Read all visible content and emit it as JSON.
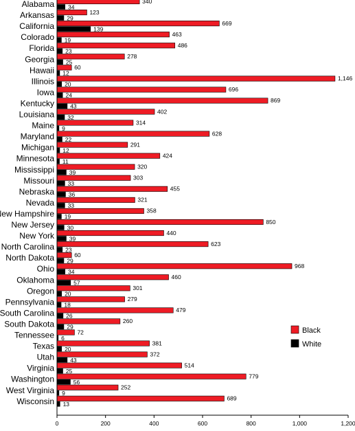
{
  "chart_data": {
    "type": "bar",
    "orientation": "horizontal",
    "categories": [
      "Alabama",
      "Arkansas",
      "California",
      "Colorado",
      "Florida",
      "Georgia",
      "Hawaii",
      "Illinois",
      "Iowa",
      "Kentucky",
      "Louisiana",
      "Maine",
      "Maryland",
      "Michigan",
      "Minnesota",
      "Mississippi",
      "Missouri",
      "Nebraska",
      "Nevada",
      "New Hampshire",
      "New Jersey",
      "New York",
      "North Carolina",
      "North Dakota",
      "Ohio",
      "Oklahoma",
      "Oregon",
      "Pennsylvania",
      "South Carolina",
      "South Dakota",
      "Tennessee",
      "Texas",
      "Utah",
      "Virginia",
      "Washington",
      "West Virginia",
      "Wisconsin"
    ],
    "series": [
      {
        "name": "Black",
        "color": "#ee1c25",
        "values": [
          340,
          123,
          669,
          463,
          486,
          278,
          60,
          1146,
          696,
          869,
          402,
          314,
          628,
          291,
          424,
          320,
          303,
          455,
          321,
          358,
          850,
          440,
          623,
          60,
          968,
          460,
          301,
          279,
          479,
          260,
          72,
          381,
          372,
          514,
          779,
          252,
          689
        ],
        "labels": [
          "340",
          "123",
          "669",
          "463",
          "486",
          "278",
          "60",
          "1,146",
          "696",
          "869",
          "402",
          "314",
          "628",
          "291",
          "424",
          "320",
          "303",
          "455",
          "321",
          "358",
          "850",
          "440",
          "623",
          "60",
          "968",
          "460",
          "301",
          "279",
          "479",
          "260",
          "72",
          "381",
          "372",
          "514",
          "779",
          "252",
          "689"
        ]
      },
      {
        "name": "White",
        "color": "#000000",
        "values": [
          34,
          29,
          139,
          19,
          23,
          25,
          12,
          20,
          24,
          43,
          32,
          9,
          22,
          12,
          11,
          39,
          33,
          36,
          33,
          19,
          30,
          39,
          23,
          29,
          34,
          57,
          20,
          18,
          26,
          29,
          6,
          20,
          43,
          25,
          56,
          9,
          13
        ],
        "labels": [
          "34",
          "29",
          "139",
          "19",
          "23",
          "25",
          "12",
          "20",
          "24",
          "43",
          "32",
          "9",
          "22",
          "12",
          "11",
          "39",
          "33",
          "36",
          "33",
          "19",
          "30",
          "39",
          "23",
          "29",
          "34",
          "57",
          "20",
          "18",
          "26",
          "29",
          "6",
          "20",
          "43",
          "25",
          "56",
          "9",
          "13"
        ]
      }
    ],
    "xlim": [
      0,
      1200
    ],
    "xticks": [
      0,
      200,
      400,
      600,
      800,
      1000,
      1200
    ],
    "xtick_labels": [
      "0",
      "200",
      "400",
      "600",
      "800",
      "1,000",
      "1,200"
    ],
    "xlabel": "",
    "ylabel": "",
    "title": "",
    "grid": false,
    "legend_position": "right"
  }
}
